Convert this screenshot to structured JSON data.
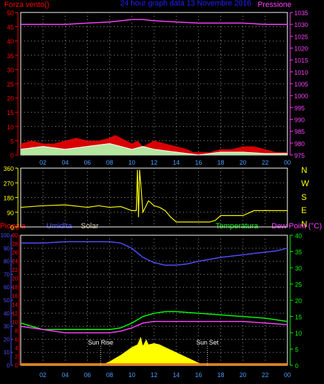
{
  "colors": {
    "background": "#000000",
    "wind": "#ff0000",
    "gust": "#ffffff",
    "wind_fill": "#b0ffb0",
    "pressure": "#ff40ff",
    "direction": "#ffff00",
    "rain": "#ff0000",
    "humidity": "#5050ff",
    "solar": "#ffff00",
    "temperature": "#00ff00",
    "dewpoint": "#ff40ff",
    "title": "#2020ff",
    "hour_labels": "#4aa0ff",
    "grid": "#a0a0a0"
  },
  "chart_data": [
    {
      "type": "line",
      "title": "24 hour graph data  13 Novembre 2016",
      "left_label": "Forza vento()",
      "right_label": "Pressione",
      "x_ticks": [
        "02",
        "04",
        "06",
        "08",
        "10",
        "12",
        "14",
        "16",
        "18",
        "20",
        "22",
        "00"
      ],
      "ylim_left": [
        0,
        50
      ],
      "left_ticks": [
        "0",
        "5",
        "10",
        "15",
        "20",
        "25",
        "30",
        "35",
        "40",
        "45",
        "50"
      ],
      "ylim_right": [
        975,
        1035
      ],
      "right_ticks": [
        "975",
        "980",
        "985",
        "990",
        "995",
        "1000",
        "1005",
        "1010",
        "1015",
        "1020",
        "1025",
        "1030",
        "1035"
      ],
      "series": [
        {
          "name": "Pressione",
          "axis": "right",
          "x": [
            0,
            2,
            4,
            6,
            8,
            9,
            10,
            11,
            12,
            14,
            16,
            18,
            20,
            22,
            24
          ],
          "y": [
            1030,
            1030,
            1030,
            1030.5,
            1031,
            1031.5,
            1032,
            1032,
            1031.5,
            1031,
            1030.5,
            1030.5,
            1030.5,
            1030,
            1030
          ]
        },
        {
          "name": "wind",
          "axis": "left",
          "x": [
            0,
            1,
            2,
            3,
            4,
            5,
            6,
            7,
            8,
            8.5,
            9,
            10,
            10.5,
            11,
            12,
            13,
            14,
            15,
            15.5,
            16,
            17,
            18,
            19,
            20,
            21,
            22,
            23,
            24
          ],
          "y": [
            4,
            5,
            4,
            4,
            5,
            6,
            5,
            5,
            6,
            7,
            6,
            4,
            5,
            3,
            5,
            4,
            3,
            2,
            1,
            1,
            1,
            2,
            2,
            3,
            3,
            2,
            1,
            1
          ]
        },
        {
          "name": "gust",
          "axis": "left",
          "x": [
            0,
            2,
            4,
            6,
            8,
            9,
            10,
            11,
            12,
            14,
            15,
            16,
            18,
            20,
            22,
            24
          ],
          "y": [
            2,
            3,
            2,
            3,
            4,
            3,
            2,
            3,
            2,
            1,
            0.5,
            0,
            1,
            1,
            0.5,
            0.5
          ]
        }
      ]
    },
    {
      "type": "line",
      "right_labels": [
        "N",
        "W",
        "S",
        "E",
        "N"
      ],
      "ylim": [
        0,
        360
      ],
      "y_ticks": [
        "0",
        "90",
        "180",
        "270",
        "360"
      ],
      "series": [
        {
          "name": "direction",
          "x": [
            0,
            2,
            4,
            6,
            7,
            8,
            9,
            10,
            10.4,
            10.5,
            10.6,
            10.7,
            11,
            11.5,
            12,
            12.5,
            13,
            13.5,
            14,
            15,
            16,
            17,
            17.5,
            18,
            19,
            20,
            21,
            22,
            23,
            24
          ],
          "y": [
            120,
            130,
            135,
            120,
            130,
            120,
            125,
            100,
            100,
            350,
            60,
            350,
            90,
            160,
            130,
            120,
            100,
            60,
            30,
            30,
            30,
            30,
            40,
            70,
            70,
            70,
            100,
            100,
            100,
            100
          ]
        }
      ]
    },
    {
      "type": "line",
      "left_labels": [
        "Pioggia",
        "Umidita",
        "Solar"
      ],
      "right_labels": [
        "Temperatura",
        "Dew Point (°C)"
      ],
      "sunrise_label": "Sun Rise",
      "sunset_label": "Sun Set",
      "sunrise_hour": 7.2,
      "sunset_hour": 16.8,
      "ylim_humidity": [
        0,
        100
      ],
      "humidity_ticks": [
        "0",
        "10",
        "20",
        "30",
        "40",
        "50",
        "60",
        "70",
        "80",
        "90",
        "100"
      ],
      "ylim_rain": [
        0,
        30
      ],
      "rain_ticks": [
        "0",
        "2",
        "4",
        "6",
        "8",
        "10",
        "12",
        "14",
        "16",
        "18",
        "20",
        "22",
        "24",
        "26",
        "28",
        "30"
      ],
      "ylim_temp": [
        0,
        40
      ],
      "temp_ticks": [
        "0",
        "5",
        "10",
        "15",
        "20",
        "25",
        "30",
        "35",
        "40"
      ],
      "x_ticks": [
        "02",
        "04",
        "06",
        "08",
        "10",
        "12",
        "14",
        "16",
        "18",
        "20",
        "22",
        "00"
      ],
      "series": [
        {
          "name": "Umidita",
          "axis": "humidity",
          "x": [
            0,
            2,
            4,
            6,
            8,
            9,
            10,
            11,
            12,
            13,
            14,
            15,
            16,
            18,
            20,
            22,
            23,
            24
          ],
          "y": [
            94,
            94,
            95,
            95,
            95,
            94,
            90,
            83,
            79,
            77,
            77,
            78,
            80,
            83,
            85,
            87,
            88,
            90
          ]
        },
        {
          "name": "Temperatura",
          "axis": "temp",
          "x": [
            0,
            1,
            2,
            4,
            6,
            8,
            9,
            10,
            11,
            12,
            13,
            14,
            16,
            18,
            20,
            22,
            23,
            24
          ],
          "y": [
            13,
            12,
            11,
            11,
            11,
            11,
            11.5,
            13,
            15,
            16,
            16.5,
            16.5,
            16,
            15.5,
            15,
            14.5,
            14,
            13.5
          ]
        },
        {
          "name": "Dew Point",
          "axis": "temp",
          "x": [
            0,
            2,
            4,
            6,
            8,
            9,
            10,
            11,
            12,
            14,
            16,
            18,
            20,
            22,
            24
          ],
          "y": [
            12,
            11,
            10,
            10,
            10,
            10.5,
            11.5,
            13,
            13.5,
            13.5,
            13.5,
            13.5,
            13.5,
            13,
            12.5
          ]
        },
        {
          "name": "Solar",
          "axis": "humidity",
          "x": [
            7.2,
            8,
            9,
            10,
            10.5,
            10.8,
            11,
            11.3,
            11.5,
            12,
            12.5,
            13,
            14,
            15,
            16,
            16.8
          ],
          "y": [
            0,
            3,
            8,
            14,
            16,
            22,
            15,
            20,
            16,
            17,
            16,
            14,
            10,
            6,
            2,
            0
          ]
        },
        {
          "name": "Pioggia",
          "axis": "rain",
          "x": [
            0,
            24
          ],
          "y": [
            0,
            0
          ]
        }
      ]
    }
  ]
}
